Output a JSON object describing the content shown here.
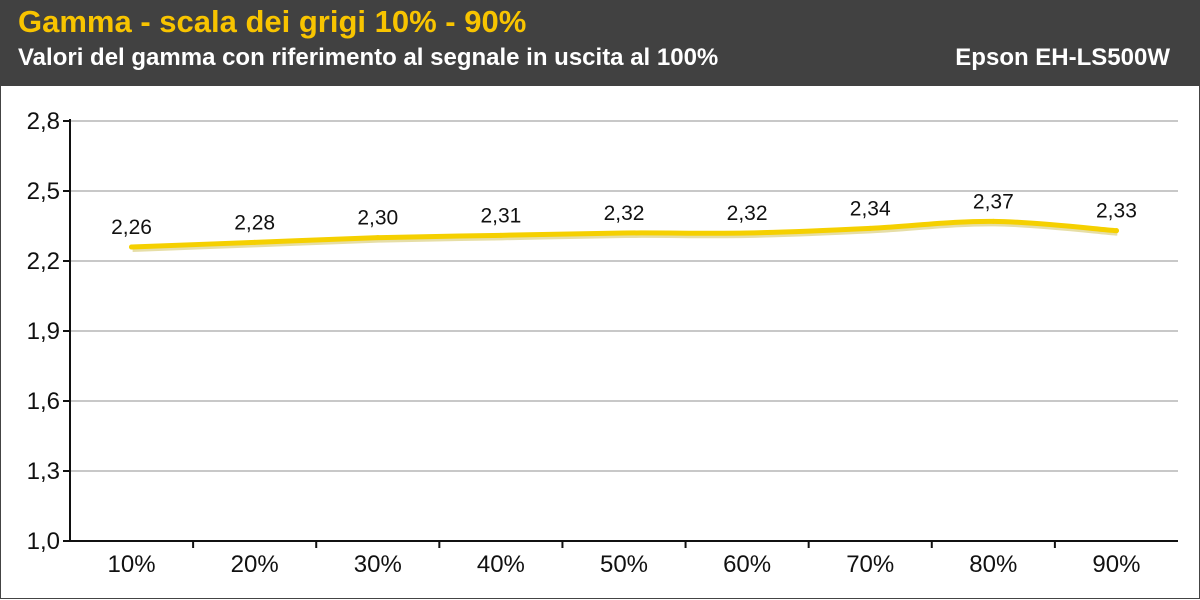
{
  "header": {
    "title": "Gamma - scala dei grigi 10% - 90%",
    "subtitle": "Valori del gamma con riferimento al segnale in uscita al 100%",
    "device": "Epson EH-LS500W"
  },
  "colors": {
    "header_bg": "#414141",
    "title": "#f8c400",
    "line": "#f5d000",
    "grid": "#c8c8c8"
  },
  "chart_data": {
    "type": "line",
    "title": "Gamma - scala dei grigi 10% - 90%",
    "subtitle": "Valori del gamma con riferimento al segnale in uscita al 100%",
    "categories": [
      "10%",
      "20%",
      "30%",
      "40%",
      "50%",
      "60%",
      "70%",
      "80%",
      "90%"
    ],
    "series": [
      {
        "values": [
          2.26,
          2.28,
          2.3,
          2.31,
          2.32,
          2.32,
          2.34,
          2.37,
          2.33
        ],
        "labels": [
          "2,26",
          "2,28",
          "2,30",
          "2,31",
          "2,32",
          "2,32",
          "2,34",
          "2,37",
          "2,33"
        ]
      }
    ],
    "ylim": [
      1.0,
      2.8
    ],
    "yticks": [
      1.0,
      1.3,
      1.6,
      1.9,
      2.2,
      2.5,
      2.8
    ],
    "ytick_labels": [
      "1,0",
      "1,3",
      "1,6",
      "1,9",
      "2,2",
      "2,5",
      "2,8"
    ],
    "grid": true,
    "xlabel": "",
    "ylabel": ""
  }
}
